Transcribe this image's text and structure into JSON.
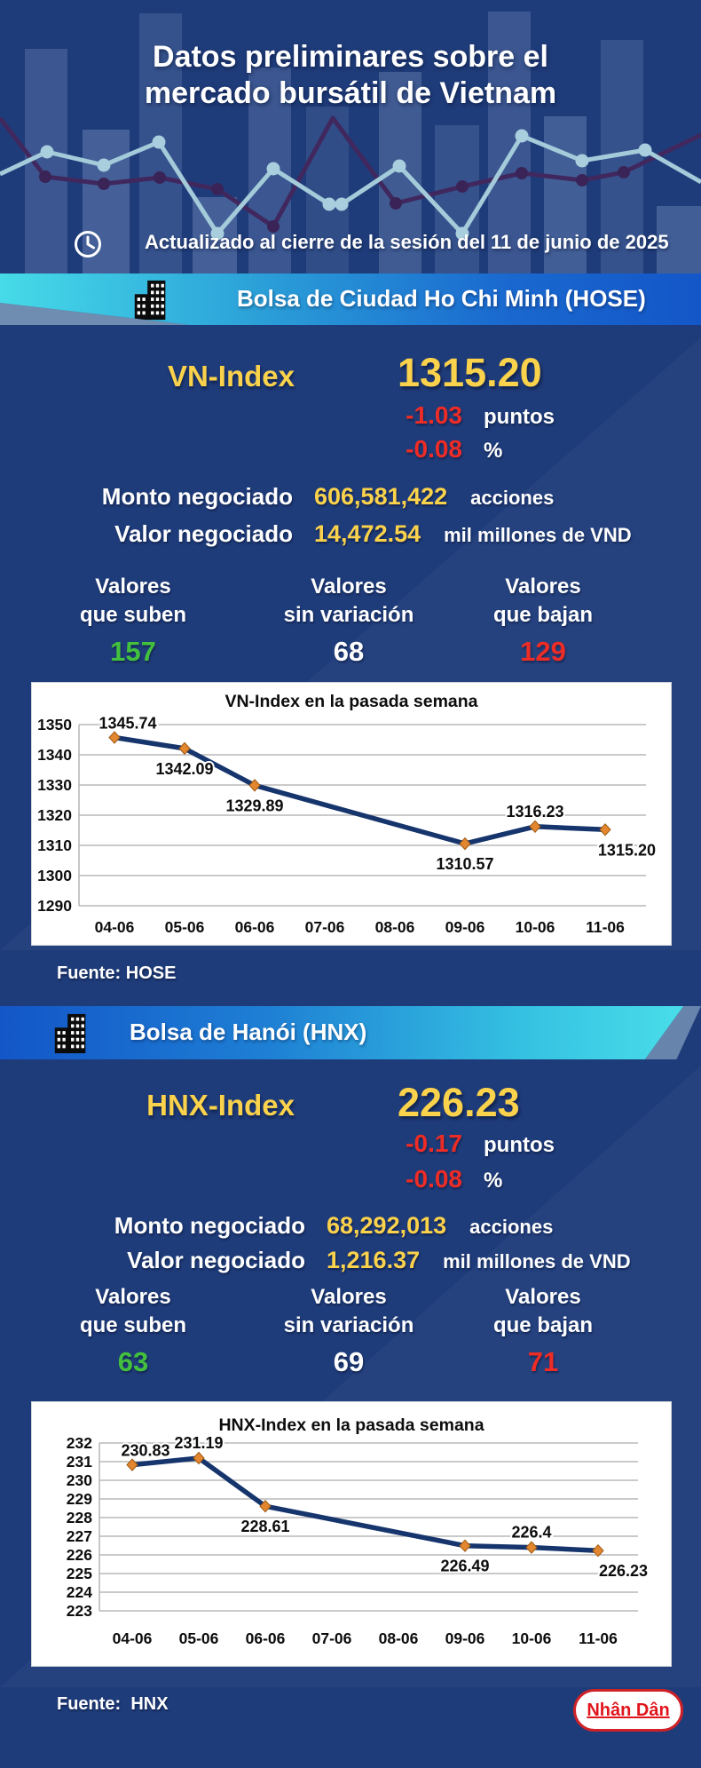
{
  "colors": {
    "background": "#1f3c7a",
    "accent_yellow": "#fbd24b",
    "negative_red": "#ee2c26",
    "positive_green": "#43c13e",
    "banner_cyan": "#46dbe8",
    "banner_blue": "#1356c8",
    "chart_line": "#16356d",
    "chart_marker": "#e2862f",
    "logo_red": "#e0151c"
  },
  "header": {
    "title_line1": "Datos preliminares sobre el",
    "title_line2": "mercado bursátil de Vietnam",
    "updated": "Actualizado al cierre de la sesión del 11 de junio de 2025"
  },
  "hose": {
    "banner_title": "Bolsa de Ciudad Ho Chi Minh (HOSE)",
    "index_label": "VN-Index",
    "index_value": "1315.20",
    "change": {
      "points": "-1.03",
      "points_unit": "puntos",
      "percent": "-0.08",
      "percent_unit": "%"
    },
    "volume_label": "Monto negociado",
    "volume_value": "606,581,422",
    "volume_unit": "acciones",
    "turnover_label": "Valor negociado",
    "turnover_value": "14,472.54",
    "turnover_unit": "mil millones de VND",
    "breadth": {
      "up": {
        "line1": "Valores",
        "line2": "que suben",
        "value": "157"
      },
      "flat": {
        "line1": "Valores",
        "line2": "sin variación",
        "value": "68"
      },
      "down": {
        "line1": "Valores",
        "line2": "que bajan",
        "value": "129"
      }
    },
    "source": "Fuente: HOSE"
  },
  "hnx": {
    "banner_title": "Bolsa de Hanói (HNX)",
    "index_label": "HNX-Index",
    "index_value": "226.23",
    "change": {
      "points": "-0.17",
      "points_unit": "puntos",
      "percent": "-0.08",
      "percent_unit": "%"
    },
    "volume_label": "Monto negociado",
    "volume_value": "68,292,013",
    "volume_unit": "acciones",
    "turnover_label": "Valor negociado",
    "turnover_value": "1,216.37",
    "turnover_unit": "mil millones de VND",
    "breadth": {
      "up": {
        "line1": "Valores",
        "line2": "que suben",
        "value": "63"
      },
      "flat": {
        "line1": "Valores",
        "line2": "sin variación",
        "value": "69"
      },
      "down": {
        "line1": "Valores",
        "line2": "que bajan",
        "value": "71"
      }
    },
    "source": "Fuente:  HNX"
  },
  "chart_data": [
    {
      "type": "line",
      "title": "VN-Index en la pasada semana",
      "categories": [
        "04-06",
        "05-06",
        "06-06",
        "07-06",
        "08-06",
        "09-06",
        "10-06",
        "11-06"
      ],
      "series": [
        {
          "name": "VN-Index",
          "data": [
            {
              "category": "04-06",
              "value": 1345.74,
              "label": "1345.74"
            },
            {
              "category": "05-06",
              "value": 1342.09,
              "label": "1342.09"
            },
            {
              "category": "06-06",
              "value": 1329.89,
              "label": "1329.89"
            },
            {
              "category": "09-06",
              "value": 1310.57,
              "label": "1310.57"
            },
            {
              "category": "10-06",
              "value": 1316.23,
              "label": "1316.23"
            },
            {
              "category": "11-06",
              "value": 1315.2,
              "label": "1315.20"
            }
          ]
        }
      ],
      "ylim": [
        1290,
        1350
      ],
      "ytick_step": 10,
      "grid": true,
      "legend": false,
      "line_color": "#16356d",
      "marker": "diamond",
      "marker_color": "#e2862f",
      "label_placement": [
        "above-right",
        "below",
        "below",
        "below",
        "above",
        "end-below"
      ]
    },
    {
      "type": "line",
      "title": "HNX-Index en la pasada semana",
      "categories": [
        "04-06",
        "05-06",
        "06-06",
        "07-06",
        "08-06",
        "09-06",
        "10-06",
        "11-06"
      ],
      "series": [
        {
          "name": "HNX-Index",
          "data": [
            {
              "category": "04-06",
              "value": 230.83,
              "label": "230.83"
            },
            {
              "category": "05-06",
              "value": 231.19,
              "label": "231.19"
            },
            {
              "category": "06-06",
              "value": 228.61,
              "label": "228.61"
            },
            {
              "category": "09-06",
              "value": 226.49,
              "label": "226.49"
            },
            {
              "category": "10-06",
              "value": 226.4,
              "label": "226.4"
            },
            {
              "category": "11-06",
              "value": 226.23,
              "label": "226.23"
            }
          ]
        }
      ],
      "ylim": [
        223,
        232
      ],
      "ytick_step": 1,
      "grid": true,
      "legend": false,
      "line_color": "#16356d",
      "marker": "diamond",
      "marker_color": "#e2862f",
      "label_placement": [
        "above-right",
        "above",
        "below",
        "below",
        "above",
        "end-below"
      ]
    }
  ],
  "footer": {
    "logo_text": "Nhân Dân"
  }
}
